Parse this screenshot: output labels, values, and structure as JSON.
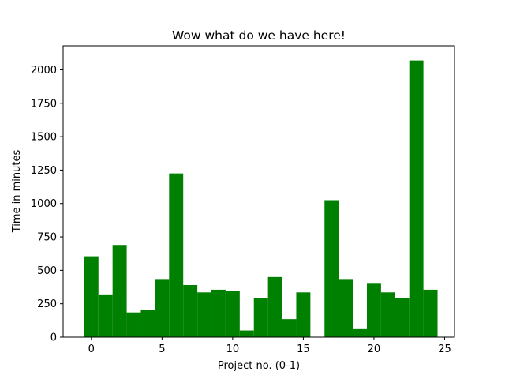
{
  "chart_data": {
    "type": "bar",
    "title": "Wow what do we have here!",
    "xlabel": "Project no. (0-1)",
    "ylabel": "Time in minutes",
    "bar_color": "#008000",
    "x": [
      0,
      1,
      2,
      3,
      4,
      5,
      6,
      7,
      8,
      9,
      10,
      11,
      12,
      13,
      14,
      15,
      16,
      17,
      18,
      19,
      20,
      21,
      22,
      23,
      24
    ],
    "values": [
      605,
      320,
      690,
      185,
      205,
      435,
      1225,
      390,
      335,
      355,
      345,
      50,
      295,
      450,
      135,
      335,
      0,
      1025,
      435,
      60,
      400,
      335,
      290,
      2070,
      355
    ],
    "xlim": [
      -2,
      25.7
    ],
    "ylim": [
      0,
      2180
    ],
    "xticks": [
      0,
      5,
      10,
      15,
      20,
      25
    ],
    "yticks": [
      0,
      250,
      500,
      750,
      1000,
      1250,
      1500,
      1750,
      2000
    ],
    "grid": false,
    "legend": false
  }
}
